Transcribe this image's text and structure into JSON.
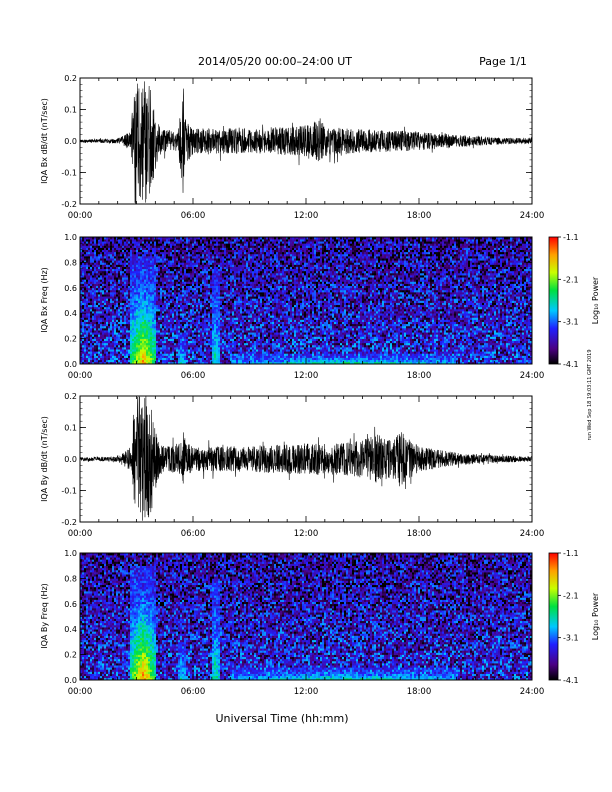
{
  "header": {
    "title": "2014/05/20  00:00–24:00 UT",
    "page": "Page 1/1"
  },
  "footer": {
    "xlabel": "Universal Time (hh:mm)",
    "timestamp": "run Wed Sep 18 19:03:11 GMT 2019"
  },
  "colorbar": {
    "label": "Log₁₀ Power",
    "ticks": [
      "-1.1",
      "-2.1",
      "-3.1",
      "-4.1"
    ],
    "range": [
      -4.1,
      -1.1
    ]
  },
  "time_ticks": [
    "00:00",
    "06:00",
    "12:00",
    "18:00",
    "24:00"
  ],
  "chart_data": [
    {
      "type": "line",
      "ylabel": "IQA Bx dB/dt (nT/sec)",
      "xlim": [
        0,
        24
      ],
      "ylim": [
        -0.2,
        0.2
      ],
      "yticks": [
        "0.2",
        "0.1",
        "0.0",
        "-0.1",
        "-0.2"
      ],
      "series": [
        {
          "x": [
            0,
            1,
            2,
            2.7,
            2.9,
            3.1,
            3.3,
            3.5,
            3.7,
            3.9,
            4.1,
            4.3,
            5.2,
            5.5,
            5.6,
            6,
            8,
            10,
            12,
            12.7,
            13,
            14,
            16,
            18,
            20,
            22,
            24
          ],
          "y_envelope": [
            0.005,
            0.006,
            0.008,
            0.03,
            0.2,
            0.2,
            0.2,
            0.2,
            0.2,
            0.12,
            0.07,
            0.04,
            0.03,
            0.2,
            0.08,
            0.04,
            0.04,
            0.04,
            0.05,
            0.08,
            0.05,
            0.04,
            0.035,
            0.03,
            0.02,
            0.012,
            0.008
          ]
        }
      ]
    },
    {
      "type": "heatmap",
      "ylabel": "IQA Bx Freq (Hz)",
      "xlim": [
        0,
        24
      ],
      "ylim": [
        0.0,
        1.0
      ],
      "yticks": [
        "1.0",
        "0.8",
        "0.6",
        "0.4",
        "0.2",
        "0.0"
      ],
      "zlim": [
        -4.1,
        -1.1
      ],
      "features": [
        {
          "t_start": 2.7,
          "t_end": 4.0,
          "max_freq": 0.85,
          "peak_log_power": -1.5
        },
        {
          "t_start": 5.2,
          "t_end": 5.6,
          "max_freq": 0.25,
          "peak_log_power": -2.6
        },
        {
          "t_start": 7.0,
          "t_end": 7.4,
          "max_freq": 0.75,
          "peak_log_power": -2.5
        },
        {
          "t_start": 8.0,
          "t_end": 20.0,
          "max_freq": 0.08,
          "peak_log_power": -2.4
        }
      ]
    },
    {
      "type": "line",
      "ylabel": "IQA By dB/dt (nT/sec)",
      "xlim": [
        0,
        24
      ],
      "ylim": [
        -0.2,
        0.2
      ],
      "yticks": [
        "0.2",
        "0.1",
        "0.0",
        "-0.1",
        "-0.2"
      ],
      "series": [
        {
          "x": [
            0,
            1,
            2,
            2.7,
            2.9,
            3.1,
            3.3,
            3.5,
            3.7,
            3.9,
            4.1,
            4.3,
            5.2,
            5.5,
            5.6,
            6,
            8,
            10,
            12,
            14,
            15,
            15.8,
            16.5,
            17,
            18,
            20,
            22,
            24
          ],
          "y_envelope": [
            0.006,
            0.007,
            0.01,
            0.04,
            0.2,
            0.2,
            0.2,
            0.2,
            0.2,
            0.13,
            0.07,
            0.05,
            0.04,
            0.09,
            0.06,
            0.04,
            0.04,
            0.045,
            0.05,
            0.05,
            0.06,
            0.08,
            0.06,
            0.09,
            0.04,
            0.02,
            0.012,
            0.008
          ]
        }
      ]
    },
    {
      "type": "heatmap",
      "ylabel": "IQA By Freq (Hz)",
      "xlim": [
        0,
        24
      ],
      "ylim": [
        0.0,
        1.0
      ],
      "yticks": [
        "1.0",
        "0.8",
        "0.6",
        "0.4",
        "0.2",
        "0.0"
      ],
      "zlim": [
        -4.1,
        -1.1
      ],
      "features": [
        {
          "t_start": 2.7,
          "t_end": 4.0,
          "max_freq": 0.9,
          "peak_log_power": -1.4
        },
        {
          "t_start": 5.2,
          "t_end": 5.6,
          "max_freq": 0.3,
          "peak_log_power": -2.6
        },
        {
          "t_start": 7.0,
          "t_end": 7.4,
          "max_freq": 0.8,
          "peak_log_power": -2.4
        },
        {
          "t_start": 8.0,
          "t_end": 20.0,
          "max_freq": 0.1,
          "peak_log_power": -2.5
        }
      ]
    }
  ]
}
